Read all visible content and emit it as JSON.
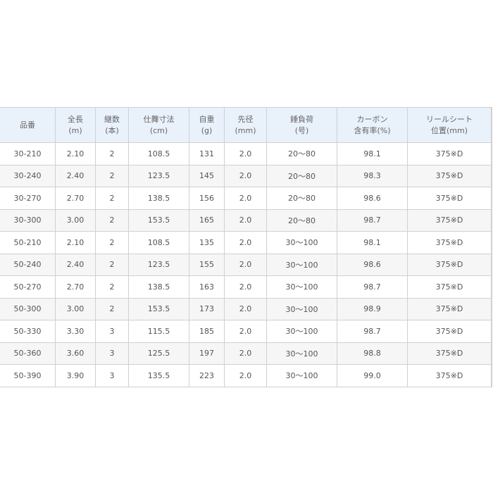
{
  "table": {
    "headers": [
      [
        "品番",
        ""
      ],
      [
        "全長",
        "(m)"
      ],
      [
        "継数",
        "(本)"
      ],
      [
        "仕舞寸法",
        "(cm)"
      ],
      [
        "自重",
        "(g)"
      ],
      [
        "先径",
        "(mm)"
      ],
      [
        "錘負荷",
        "(号)"
      ],
      [
        "カーボン",
        "含有率(%)"
      ],
      [
        "リールシート",
        "位置(mm)"
      ]
    ],
    "rows": [
      [
        "30-210",
        "2.10",
        "2",
        "108.5",
        "131",
        "2.0",
        "20〜80",
        "98.1",
        "375※D"
      ],
      [
        "30-240",
        "2.40",
        "2",
        "123.5",
        "145",
        "2.0",
        "20〜80",
        "98.3",
        "375※D"
      ],
      [
        "30-270",
        "2.70",
        "2",
        "138.5",
        "156",
        "2.0",
        "20〜80",
        "98.6",
        "375※D"
      ],
      [
        "30-300",
        "3.00",
        "2",
        "153.5",
        "165",
        "2.0",
        "20〜80",
        "98.7",
        "375※D"
      ],
      [
        "50-210",
        "2.10",
        "2",
        "108.5",
        "135",
        "2.0",
        "30〜100",
        "98.1",
        "375※D"
      ],
      [
        "50-240",
        "2.40",
        "2",
        "123.5",
        "155",
        "2.0",
        "30〜100",
        "98.6",
        "375※D"
      ],
      [
        "50-270",
        "2.70",
        "2",
        "138.5",
        "163",
        "2.0",
        "30〜100",
        "98.7",
        "375※D"
      ],
      [
        "50-300",
        "3.00",
        "2",
        "153.5",
        "173",
        "2.0",
        "30〜100",
        "98.9",
        "375※D"
      ],
      [
        "50-330",
        "3.30",
        "3",
        "115.5",
        "185",
        "2.0",
        "30〜100",
        "98.7",
        "375※D"
      ],
      [
        "50-360",
        "3.60",
        "3",
        "125.5",
        "197",
        "2.0",
        "30〜100",
        "98.8",
        "375※D"
      ],
      [
        "50-390",
        "3.90",
        "3",
        "135.5",
        "223",
        "2.0",
        "30〜100",
        "99.0",
        "375※D"
      ]
    ]
  }
}
